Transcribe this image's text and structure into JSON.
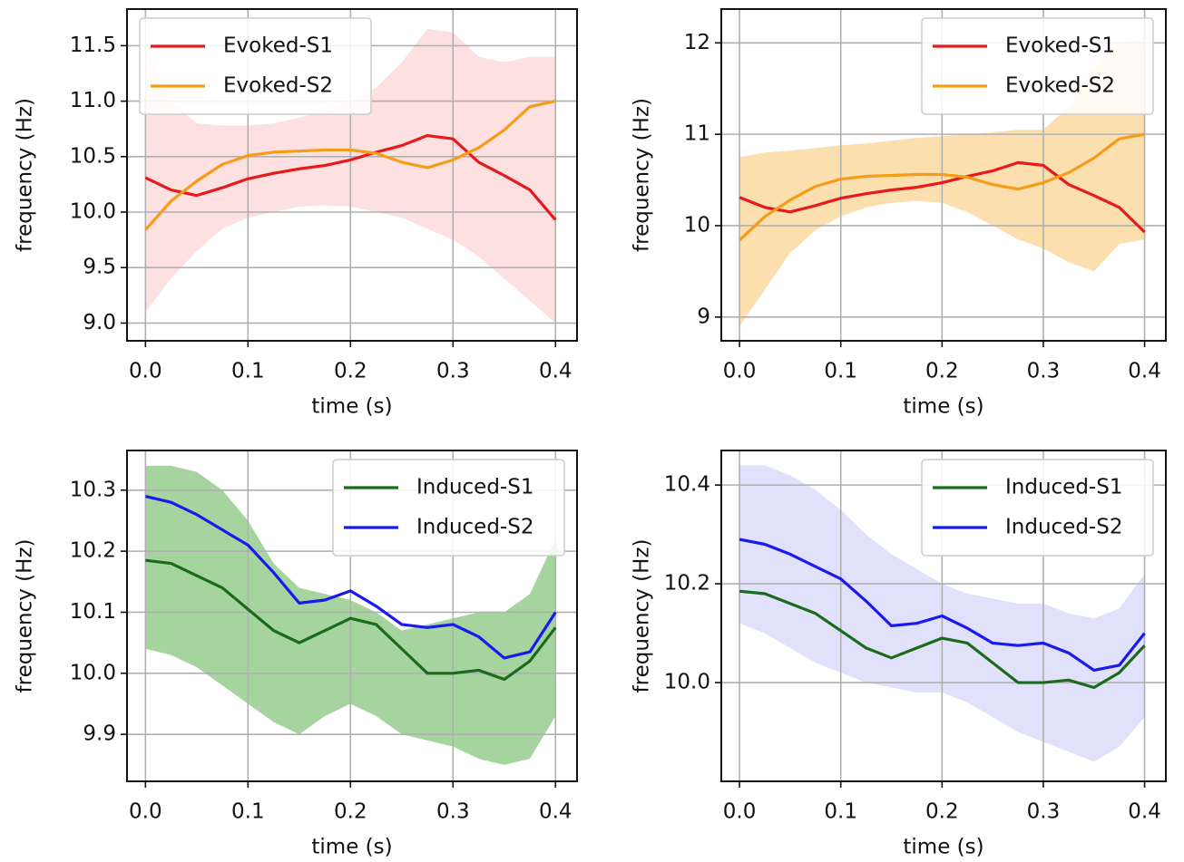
{
  "chart_data": [
    {
      "type": "line",
      "xlabel": "time (s)",
      "ylabel": "frequency (Hz)",
      "legend": "upper left",
      "grid": true,
      "x": [
        0,
        0.025,
        0.05,
        0.075,
        0.1,
        0.125,
        0.15,
        0.175,
        0.2,
        0.225,
        0.25,
        0.275,
        0.3,
        0.325,
        0.35,
        0.375,
        0.4
      ],
      "series": [
        {
          "name": "Evoked-S1",
          "color": "#e8191c",
          "values": [
            10.31,
            10.2,
            10.15,
            10.22,
            10.3,
            10.35,
            10.39,
            10.42,
            10.47,
            10.54,
            10.6,
            10.69,
            10.66,
            10.45,
            10.33,
            10.2,
            9.93
          ]
        },
        {
          "name": "Evoked-S2",
          "color": "#f59c18",
          "values": [
            9.84,
            10.1,
            10.28,
            10.43,
            10.51,
            10.54,
            10.55,
            10.56,
            10.56,
            10.53,
            10.45,
            10.4,
            10.47,
            10.58,
            10.74,
            10.95,
            11.0
          ]
        }
      ],
      "band": {
        "color": "#fde0e0",
        "upper": [
          11.5,
          11.0,
          10.8,
          10.78,
          10.78,
          10.8,
          10.85,
          10.92,
          11.0,
          11.12,
          11.35,
          11.65,
          11.62,
          11.4,
          11.35,
          11.4,
          11.4
        ],
        "lower": [
          9.1,
          9.4,
          9.65,
          9.85,
          9.95,
          10.0,
          10.05,
          10.06,
          10.05,
          10.0,
          9.95,
          9.85,
          9.75,
          9.6,
          9.4,
          9.2,
          9.0
        ]
      },
      "xlim": [
        -0.018,
        0.421
      ],
      "xticks": [
        {
          "value": 0,
          "label": "0.0"
        },
        0.1,
        0.2,
        0.3,
        0.4
      ],
      "ylim": [
        8.84,
        11.83
      ],
      "yticks": [
        {
          "value": 9,
          "label": "9.0"
        },
        9.5,
        {
          "value": 10,
          "label": "10.0"
        },
        10.5,
        {
          "value": 11,
          "label": "11.0"
        },
        11.5
      ]
    },
    {
      "type": "line",
      "xlabel": "time (s)",
      "ylabel": "frequency (Hz)",
      "legend": "upper right",
      "grid": true,
      "x": [
        0,
        0.025,
        0.05,
        0.075,
        0.1,
        0.125,
        0.15,
        0.175,
        0.2,
        0.225,
        0.25,
        0.275,
        0.3,
        0.325,
        0.35,
        0.375,
        0.4
      ],
      "series": [
        {
          "name": "Evoked-S1",
          "color": "#e8191c",
          "values": [
            10.31,
            10.2,
            10.15,
            10.22,
            10.3,
            10.35,
            10.39,
            10.42,
            10.47,
            10.54,
            10.6,
            10.69,
            10.66,
            10.45,
            10.33,
            10.2,
            9.93
          ]
        },
        {
          "name": "Evoked-S2",
          "color": "#f59c18",
          "values": [
            9.84,
            10.1,
            10.28,
            10.43,
            10.51,
            10.54,
            10.55,
            10.56,
            10.56,
            10.53,
            10.45,
            10.4,
            10.47,
            10.58,
            10.74,
            10.95,
            11.0
          ]
        }
      ],
      "band": {
        "color": "#fcdfae",
        "upper": [
          10.75,
          10.8,
          10.82,
          10.85,
          10.88,
          10.9,
          10.93,
          10.96,
          10.98,
          11.0,
          11.02,
          11.05,
          11.05,
          11.3,
          11.75,
          12.0,
          12.05
        ],
        "lower": [
          8.9,
          9.3,
          9.7,
          9.95,
          10.1,
          10.2,
          10.25,
          10.27,
          10.25,
          10.15,
          10.0,
          9.85,
          9.75,
          9.6,
          9.5,
          9.8,
          9.85
        ]
      },
      "xlim": [
        -0.018,
        0.421
      ],
      "xticks": [
        {
          "value": 0,
          "label": "0.0"
        },
        0.1,
        0.2,
        0.3,
        0.4
      ],
      "ylim": [
        8.74,
        12.37
      ],
      "yticks": [
        9,
        10,
        11,
        12
      ]
    },
    {
      "type": "line",
      "xlabel": "time (s)",
      "ylabel": "frequency (Hz)",
      "legend": "upper right",
      "grid": true,
      "x": [
        0,
        0.025,
        0.05,
        0.075,
        0.1,
        0.125,
        0.15,
        0.175,
        0.2,
        0.225,
        0.25,
        0.275,
        0.3,
        0.325,
        0.35,
        0.375,
        0.4
      ],
      "series": [
        {
          "name": "Induced-S1",
          "color": "#1a6b1a",
          "values": [
            10.185,
            10.18,
            10.16,
            10.14,
            10.105,
            10.07,
            10.05,
            10.07,
            10.09,
            10.08,
            10.04,
            10.0,
            10.0,
            10.005,
            9.99,
            10.02,
            10.075
          ]
        },
        {
          "name": "Induced-S2",
          "color": "#1a1aee",
          "values": [
            10.29,
            10.28,
            10.26,
            10.235,
            10.21,
            10.165,
            10.115,
            10.12,
            10.135,
            10.11,
            10.08,
            10.075,
            10.08,
            10.06,
            10.025,
            10.035,
            10.1
          ]
        }
      ],
      "band": {
        "color": "#a6d49f",
        "upper": [
          10.34,
          10.34,
          10.33,
          10.3,
          10.25,
          10.18,
          10.14,
          10.13,
          10.12,
          10.1,
          10.07,
          10.08,
          10.09,
          10.1,
          10.1,
          10.13,
          10.22
        ],
        "lower": [
          10.04,
          10.03,
          10.01,
          9.98,
          9.95,
          9.92,
          9.9,
          9.93,
          9.95,
          9.93,
          9.9,
          9.89,
          9.88,
          9.86,
          9.85,
          9.86,
          9.93
        ]
      },
      "xlim": [
        -0.018,
        0.421
      ],
      "xticks": [
        {
          "value": 0,
          "label": "0.0"
        },
        0.1,
        0.2,
        0.3,
        0.4
      ],
      "ylim": [
        9.823,
        10.365
      ],
      "yticks": [
        9.9,
        {
          "value": 10,
          "label": "10.0"
        },
        10.1,
        10.2,
        10.3
      ]
    },
    {
      "type": "line",
      "xlabel": "time (s)",
      "ylabel": "frequency (Hz)",
      "legend": "upper right",
      "grid": true,
      "x": [
        0,
        0.025,
        0.05,
        0.075,
        0.1,
        0.125,
        0.15,
        0.175,
        0.2,
        0.225,
        0.25,
        0.275,
        0.3,
        0.325,
        0.35,
        0.375,
        0.4
      ],
      "series": [
        {
          "name": "Induced-S1",
          "color": "#1a6b1a",
          "values": [
            10.185,
            10.18,
            10.16,
            10.14,
            10.105,
            10.07,
            10.05,
            10.07,
            10.09,
            10.08,
            10.04,
            10.0,
            10.0,
            10.005,
            9.99,
            10.02,
            10.075
          ]
        },
        {
          "name": "Induced-S2",
          "color": "#1a1aee",
          "values": [
            10.29,
            10.28,
            10.26,
            10.235,
            10.21,
            10.165,
            10.115,
            10.12,
            10.135,
            10.11,
            10.08,
            10.075,
            10.08,
            10.06,
            10.025,
            10.035,
            10.1
          ]
        }
      ],
      "band": {
        "color": "#e1e1fb",
        "upper": [
          10.44,
          10.44,
          10.42,
          10.39,
          10.35,
          10.3,
          10.26,
          10.23,
          10.2,
          10.18,
          10.17,
          10.16,
          10.16,
          10.14,
          10.13,
          10.15,
          10.22
        ],
        "lower": [
          10.12,
          10.1,
          10.07,
          10.04,
          10.02,
          10.0,
          9.99,
          9.98,
          9.98,
          9.96,
          9.93,
          9.9,
          9.88,
          9.86,
          9.84,
          9.87,
          9.93
        ]
      },
      "xlim": [
        -0.018,
        0.421
      ],
      "xticks": [
        {
          "value": 0,
          "label": "0.0"
        },
        0.1,
        0.2,
        0.3,
        0.4
      ],
      "ylim": [
        9.8,
        10.47
      ],
      "yticks": [
        {
          "value": 10,
          "label": "10.0"
        },
        10.2,
        10.4
      ]
    }
  ]
}
